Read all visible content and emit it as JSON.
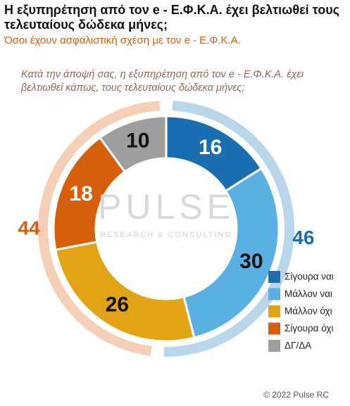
{
  "chart_data": {
    "type": "donut",
    "title": "Η εξυπηρέτηση από τον e - Ε.Φ.Κ.Α. έχει βελτιωθεί τους τελευταίους δώδεκα μήνες;",
    "subtitle": "Όσοι έχουν ασφαλιστική σχέση με τον e - Ε.Φ.Κ.Α.",
    "question": "Κατά την άποψή σας, η εξυπηρέτηση από τον e - Ε.Φ.Κ.Α. έχει βελτιωθεί κάπως, τους τελευταίους δώδεκα μήνες;",
    "categories": [
      "Σίγουρα ναι",
      "Μάλλον ναι",
      "Μάλλον όχι",
      "Σίγουρα όχι",
      "ΔΓ/ΔΑ"
    ],
    "values": [
      16,
      30,
      26,
      18,
      10
    ],
    "colors": [
      "#1b6fb1",
      "#5aafe3",
      "#e2a317",
      "#d65f0c",
      "#9e9e9e"
    ],
    "outer": {
      "values": [
        46,
        44
      ],
      "colors": [
        "#b8d7eb",
        "#f5d0b6"
      ],
      "label_colors": [
        "#1b6fb1",
        "#d65f0c"
      ]
    },
    "watermark": {
      "name": "PULSE",
      "tagline": "RESEARCH & CONSULTING"
    },
    "footer": "© 2022 Pulse RC"
  }
}
